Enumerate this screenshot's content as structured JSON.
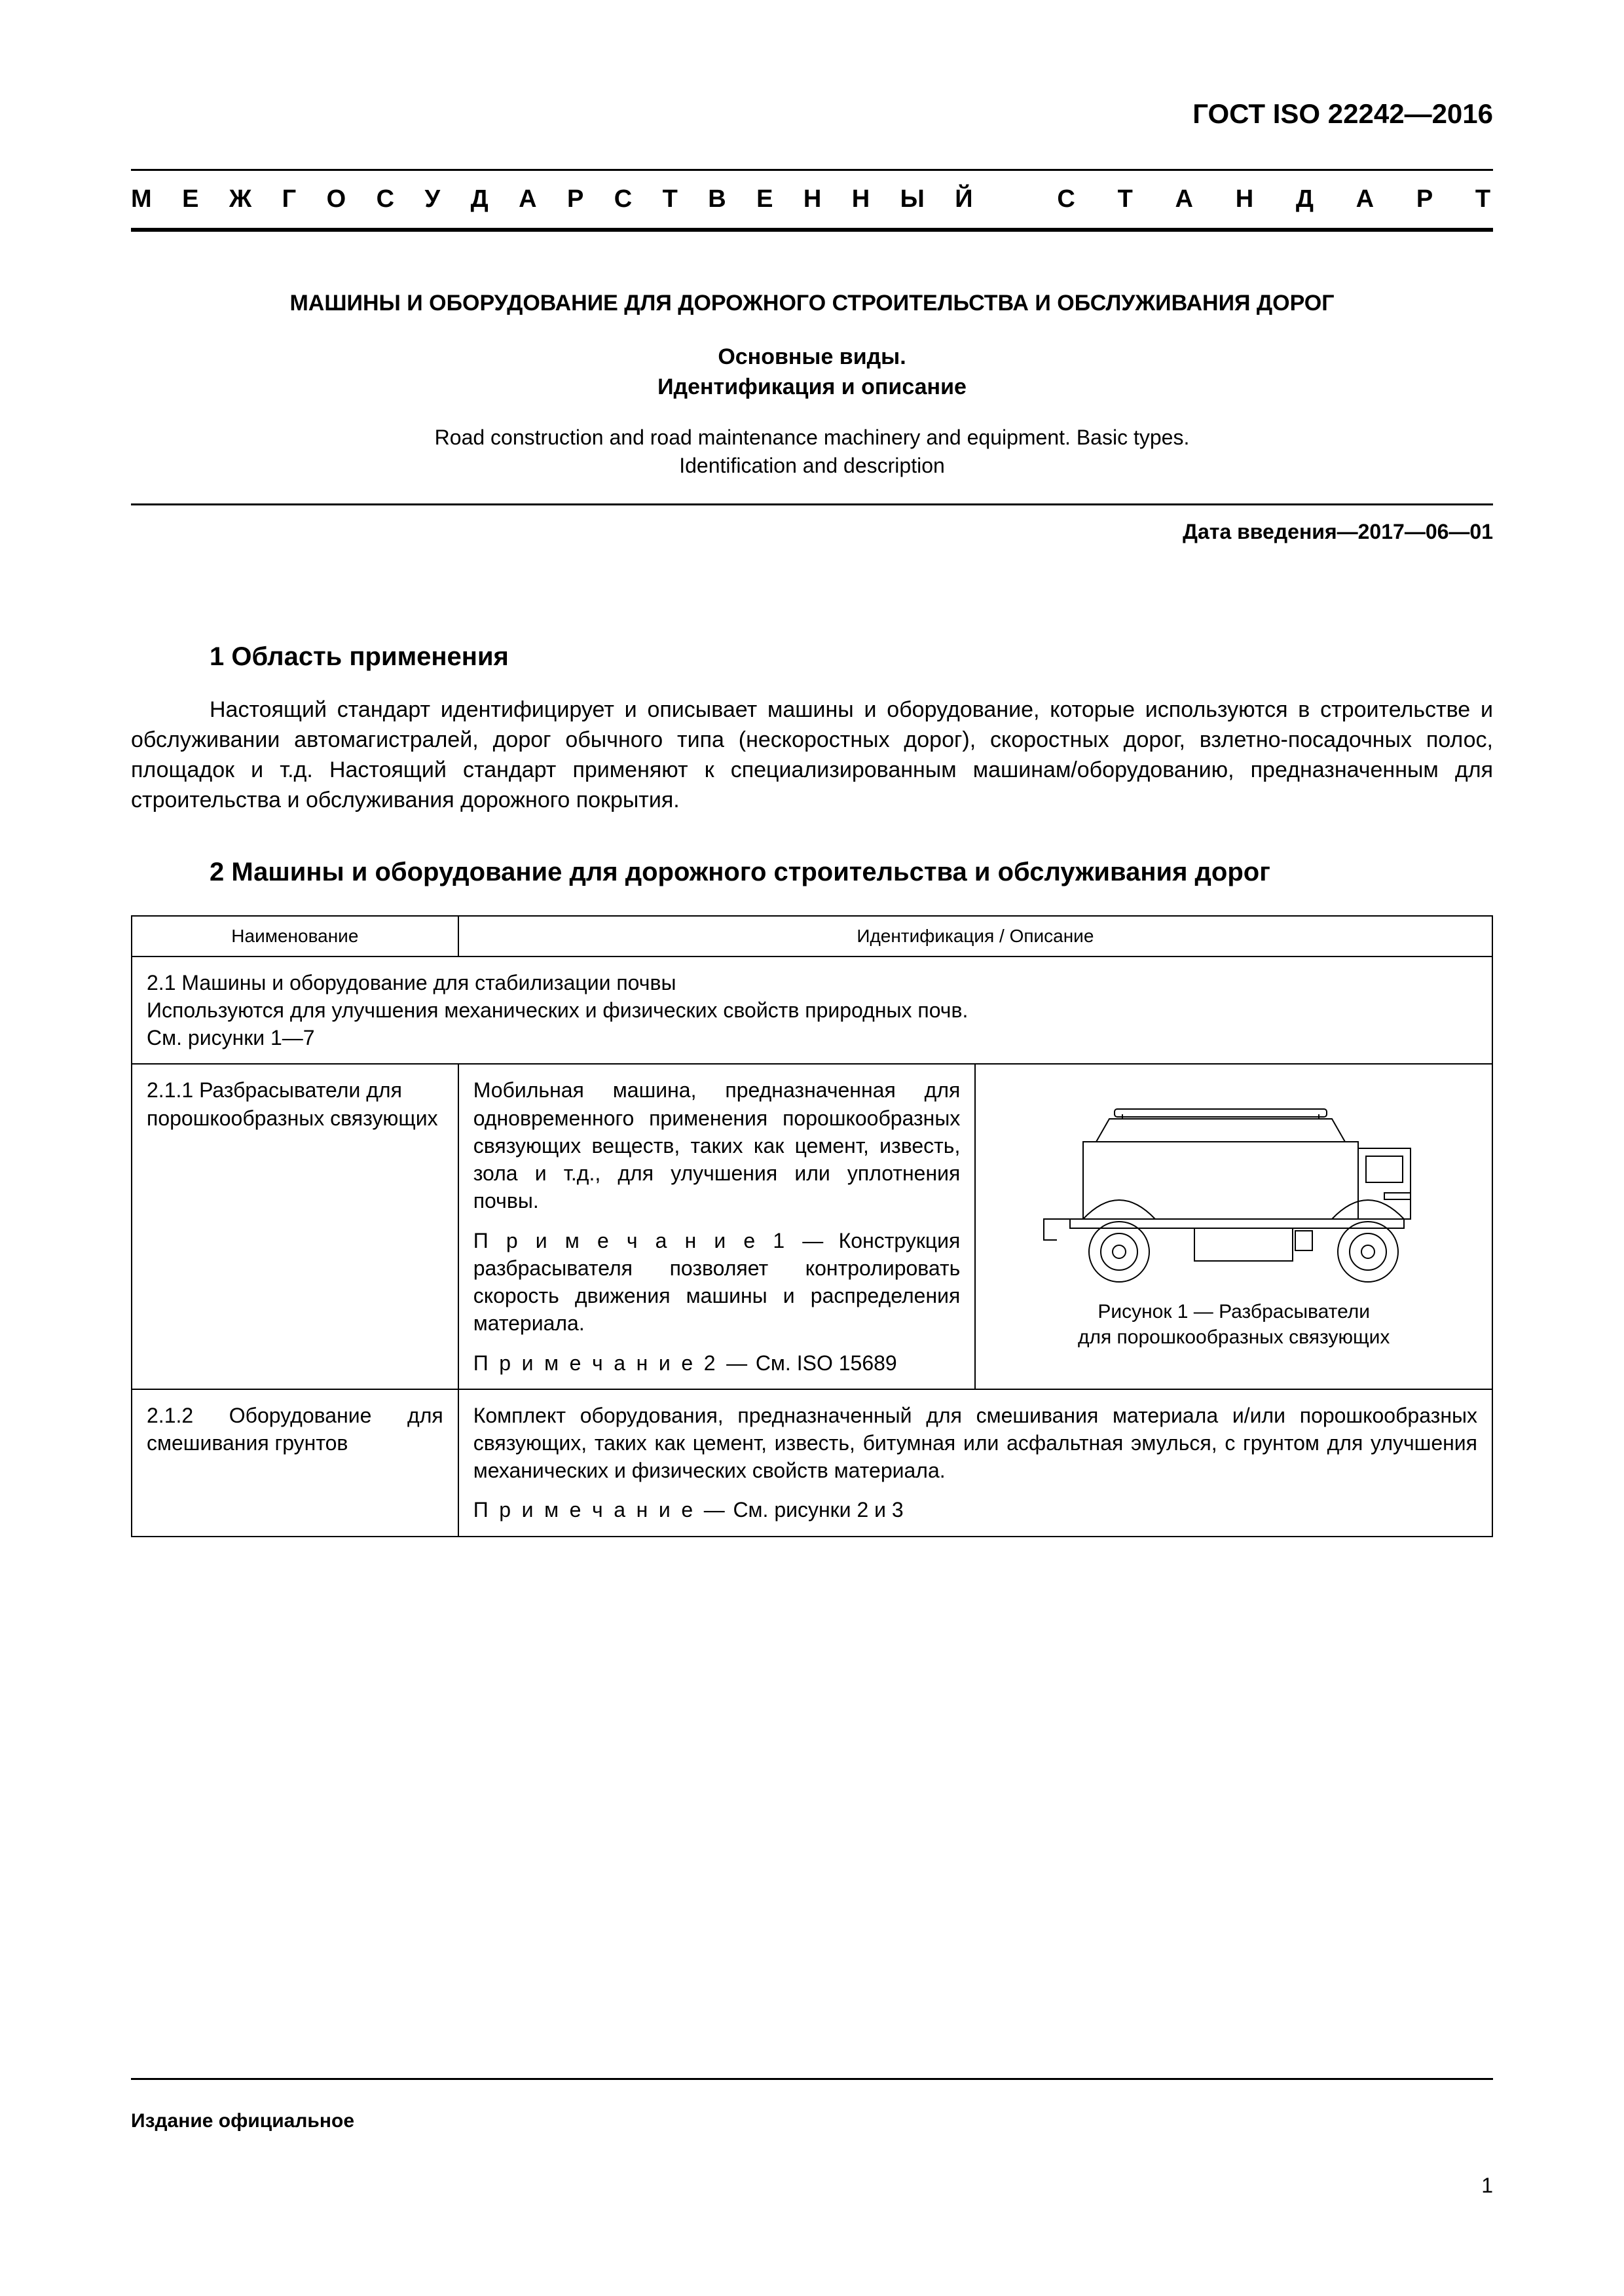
{
  "doc_id": "ГОСТ ISO 22242—2016",
  "banner_word1": "МЕЖГОСУДАРСТВЕННЫЙ",
  "banner_word2": "СТАНДАРТ",
  "title_ru_main": "МАШИНЫ И ОБОРУДОВАНИЕ ДЛЯ ДОРОЖНОГО СТРОИТЕЛЬСТВА И ОБСЛУЖИВАНИЯ ДОРОГ",
  "title_ru_sub_line1": "Основные виды.",
  "title_ru_sub_line2": "Идентификация и описание",
  "title_en_line1": "Road construction and road maintenance machinery and equipment. Basic types.",
  "title_en_line2": "Identification and description",
  "intro_date": "Дата введения—2017—06—01",
  "section1_heading": "1  Область применения",
  "section1_body": "Настоящий стандарт идентифицирует и описывает машины и оборудование, которые используются в строительстве и обслуживании автомагистралей, дорог обычного типа (нескоростных дорог), скоростных дорог, взлетно-посадочных полос, площадок и т.д. Настоящий стандарт применяют к специализированным машинам/оборудованию, предназначенным для строительства и обслуживания дорожного покрытия.",
  "section2_heading": "2  Машины и оборудование для дорожного строительства и обслуживания дорог",
  "table": {
    "col1_header": "Наименование",
    "col2_header": "Идентификация / Описание",
    "row_2_1": {
      "line1": "2.1  Машины и оборудование для стабилизации почвы",
      "line2": "Используются для улучшения механических и физических свойств природных почв.",
      "line3": "См. рисунки 1—7"
    },
    "row_2_1_1": {
      "name": "2.1.1 Разбрасыватели для порошкообразных связующих",
      "desc_p1": "Мобильная машина, предназначенная для одновременного применения порошкообразных связующих веществ, таких как цемент, известь, зола и т.д., для улучшения или уплотнения почвы.",
      "note1_label": "П р и м е ч а н и е  1 —",
      "note1_text": "Конструкция разбрасывателя позволяет контролировать скорость движения машины и распределения материала.",
      "note2_label": "П р и м е ч а н и е  2 —",
      "note2_text": "См. ISO 15689",
      "fig_caption_line1": "Рисунок 1 — Разбрасыватели",
      "fig_caption_line2": "для порошкообразных связующих"
    },
    "row_2_1_2": {
      "name": "2.1.2 Оборудование для смешивания грунтов",
      "desc": "Комплект оборудования, предназначенный для смешивания материала и/или порошкообразных связующих, таких как цемент, известь, битумная или асфальтная эмулься, с грунтом для улучшения механических и физических свойств материала.",
      "note_label": "П р и м е ч а н и е   —",
      "note_text": "См. рисунки 2 и 3"
    }
  },
  "edition_label": "Издание официальное",
  "page_number": "1",
  "figure1": {
    "stroke": "#000000",
    "stroke_width": 2,
    "fill": "none",
    "bg": "#ffffff"
  }
}
